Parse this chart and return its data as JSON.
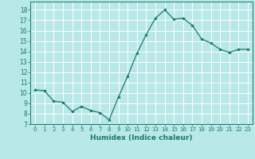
{
  "x": [
    0,
    1,
    2,
    3,
    4,
    5,
    6,
    7,
    8,
    9,
    10,
    11,
    12,
    13,
    14,
    15,
    16,
    17,
    18,
    19,
    20,
    21,
    22,
    23
  ],
  "y": [
    10.3,
    10.2,
    9.2,
    9.1,
    8.2,
    8.7,
    8.3,
    8.1,
    7.4,
    9.6,
    11.6,
    13.8,
    15.6,
    17.2,
    18.0,
    17.1,
    17.2,
    16.5,
    15.2,
    14.8,
    14.2,
    13.9,
    14.2,
    14.2
  ],
  "line_color": "#1a7a6e",
  "marker_color": "#1a7a6e",
  "bg_color": "#b8e8e8",
  "grid_color": "#ffffff",
  "xlabel": "Humidex (Indice chaleur)",
  "xlim": [
    -0.5,
    23.5
  ],
  "ylim": [
    7,
    18.8
  ],
  "yticks": [
    7,
    8,
    9,
    10,
    11,
    12,
    13,
    14,
    15,
    16,
    17,
    18
  ],
  "xticks": [
    0,
    1,
    2,
    3,
    4,
    5,
    6,
    7,
    8,
    9,
    10,
    11,
    12,
    13,
    14,
    15,
    16,
    17,
    18,
    19,
    20,
    21,
    22,
    23
  ]
}
